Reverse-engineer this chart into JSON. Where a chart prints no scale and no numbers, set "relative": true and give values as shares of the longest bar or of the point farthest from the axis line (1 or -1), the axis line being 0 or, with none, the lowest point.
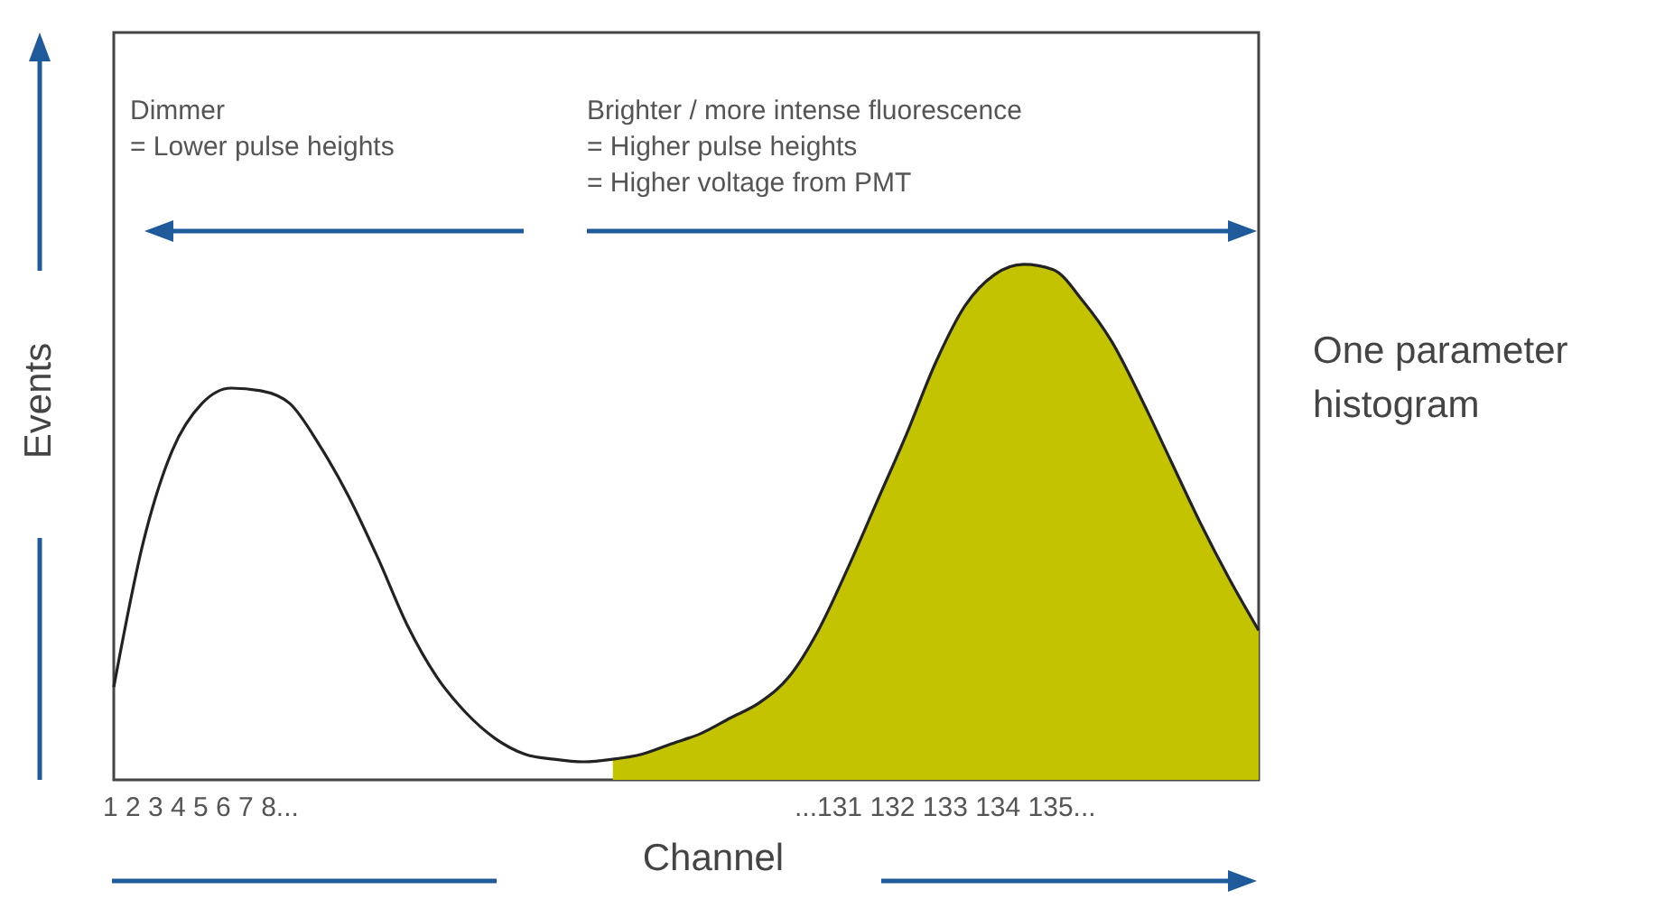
{
  "chart_data": {
    "type": "line",
    "title": "One parameter histogram",
    "xlabel": "Channel",
    "ylabel": "Events",
    "relative": true,
    "tick_labels": false,
    "annotations": [
      "Dimmer\n= Lower pulse heights",
      "Brighter / more intense fluorescence\n= Higher pulse heights\n= Higher voltage from PMT",
      "1 2 3 4 5 6 7 8...",
      "...131 132 133 134 135..."
    ],
    "categories": [
      null,
      null,
      null,
      null,
      null,
      null,
      null,
      null,
      null,
      null,
      null,
      null,
      null,
      null,
      null,
      null,
      null,
      null,
      null,
      null,
      null,
      null,
      null,
      null,
      null,
      null,
      null,
      null,
      null,
      null,
      null,
      null,
      null,
      null,
      null,
      null,
      null,
      null,
      null,
      null
    ],
    "series": [
      {
        "type": "line",
        "color": "#222222",
        "values": [
          0.18,
          0.46,
          0.64,
          0.73,
          0.76,
          0.755,
          0.73,
          0.65,
          0.55,
          0.43,
          0.3,
          0.2,
          0.13,
          0.08,
          0.05,
          0.04,
          0.035,
          0.04,
          0.05,
          0.07,
          0.09,
          0.12,
          0.15,
          0.2,
          0.29,
          0.41,
          0.54,
          0.67,
          0.81,
          0.92,
          0.98,
          1,
          0.99,
          0.93,
          0.85,
          0.74,
          0.62,
          0.5,
          0.39,
          0.29
        ]
      },
      {
        "type": "area",
        "color": "#c3c300",
        "values": [
          null,
          null,
          null,
          null,
          null,
          null,
          null,
          null,
          null,
          null,
          null,
          null,
          null,
          null,
          null,
          null,
          null,
          0.04,
          0.05,
          0.07,
          0.09,
          0.12,
          0.15,
          0.2,
          0.29,
          0.41,
          0.54,
          0.67,
          0.81,
          0.92,
          0.98,
          1,
          0.99,
          0.93,
          0.85,
          0.74,
          0.62,
          0.5,
          0.39,
          0.29
        ]
      }
    ]
  }
}
